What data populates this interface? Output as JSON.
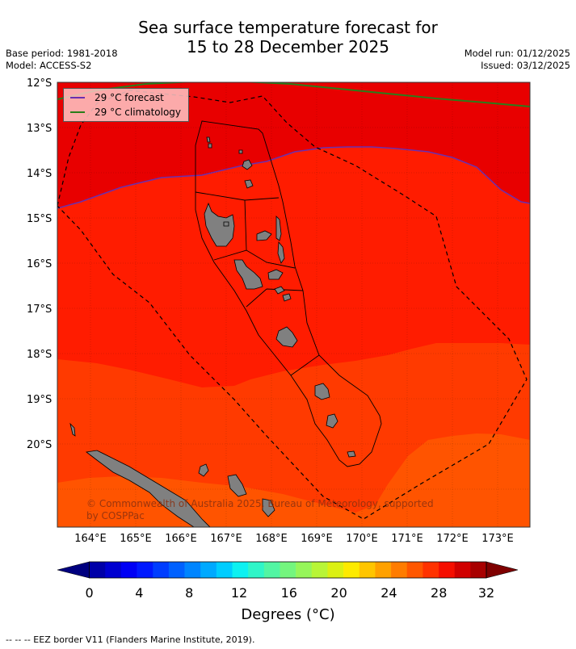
{
  "title": {
    "line1": "Sea surface temperature forecast for",
    "line2": "15 to 28 December 2025"
  },
  "meta": {
    "base_period": "Base period: 1981-2018",
    "model": "Model: ACCESS-S2",
    "model_run": "Model run: 01/12/2025",
    "issued": "Issued: 03/12/2025"
  },
  "legend": {
    "forecast": "29 °C  forecast",
    "climatology": "29 °C  climatology",
    "forecast_color": "#6a2fb0",
    "climatology_color": "#2a7d1a"
  },
  "credit": "© Commonwealth of Australia 2025, Bureau of Meteorology, supported by COSPPac",
  "lat_labels": [
    "12°S",
    "13°S",
    "14°S",
    "15°S",
    "16°S",
    "17°S",
    "18°S",
    "19°S",
    "20°S"
  ],
  "lon_labels": [
    "164°E",
    "165°E",
    "166°E",
    "167°E",
    "168°E",
    "169°E",
    "170°E",
    "171°E",
    "172°E",
    "173°E"
  ],
  "colorbar": {
    "ticks": [
      "0",
      "4",
      "8",
      "12",
      "16",
      "20",
      "24",
      "28",
      "32"
    ],
    "label": "Degrees (°C)",
    "colors": [
      "#00007f",
      "#0000a8",
      "#0000d0",
      "#0000f5",
      "#0019ff",
      "#003dff",
      "#0061ff",
      "#0085ff",
      "#00a9ff",
      "#00cdff",
      "#0df1f1",
      "#2ff5c8",
      "#52f5a3",
      "#74f57e",
      "#96f55a",
      "#b8f537",
      "#dbf013",
      "#fdea00",
      "#ffc500",
      "#ffa100",
      "#ff7c00",
      "#ff5700",
      "#ff3200",
      "#f50e00",
      "#d00000",
      "#a80000",
      "#7f0000"
    ]
  },
  "sst_colors": {
    "deep_red": "#e80000",
    "red": "#ff1c00",
    "red_orange": "#ff3a00",
    "orange": "#ff5400"
  },
  "footnote": "--  --  -- EEZ border V11 (Flanders Marine Institute, 2019)."
}
